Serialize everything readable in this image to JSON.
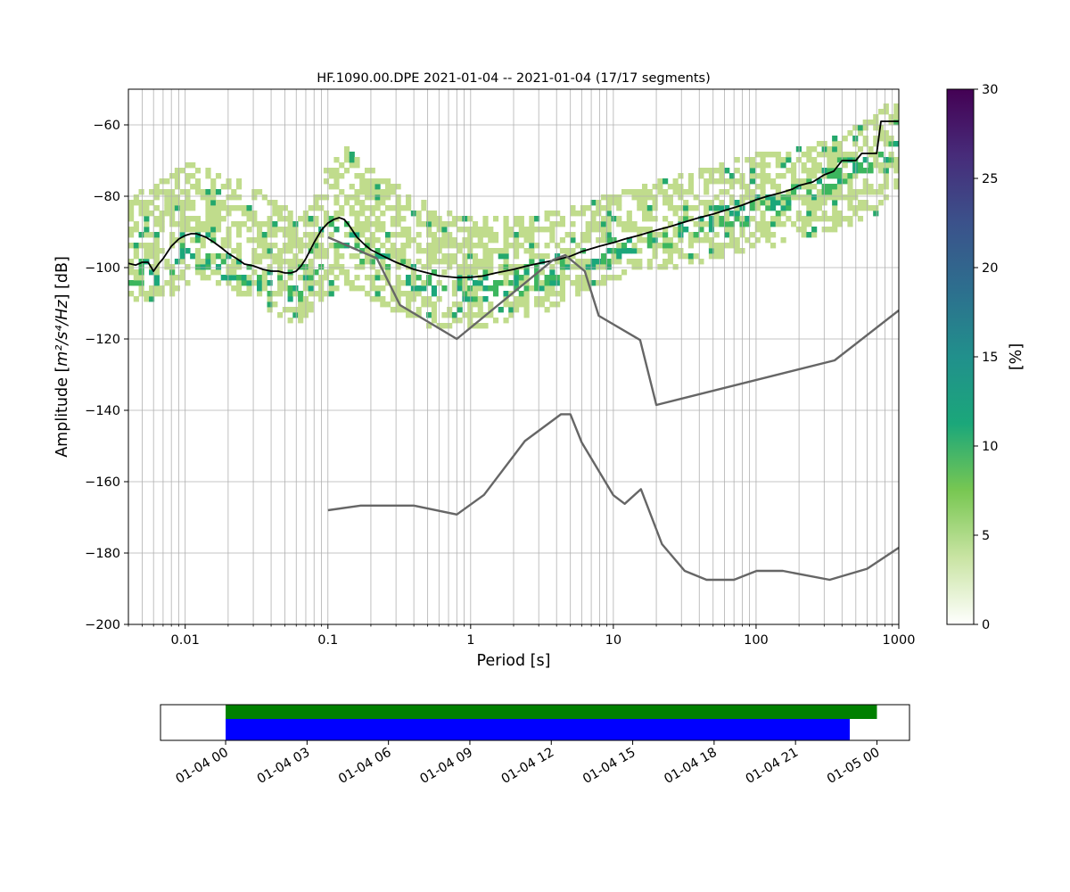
{
  "chart_data": [
    {
      "type": "heatmap",
      "title": "HF.1090.00.DPE   2021-01-04 -- 2021-01-04  (17/17 segments)",
      "xlabel": "Period [s]",
      "ylabel_main": "Amplitude [",
      "ylabel_math": "m²/s⁴/Hz",
      "ylabel_tail": "] [dB]",
      "x_scale": "log",
      "xlim": [
        0.004,
        1000
      ],
      "ylim": [
        -200,
        -50
      ],
      "grid": true,
      "x_ticks": [
        {
          "value": 0.01,
          "label": "0.01"
        },
        {
          "value": 0.1,
          "label": "0.1"
        },
        {
          "value": 1,
          "label": "1"
        },
        {
          "value": 10,
          "label": "10"
        },
        {
          "value": 100,
          "label": "100"
        },
        {
          "value": 1000,
          "label": "1000"
        }
      ],
      "y_ticks": [
        {
          "value": -200,
          "label": "−200"
        },
        {
          "value": -180,
          "label": "−180"
        },
        {
          "value": -160,
          "label": "−160"
        },
        {
          "value": -140,
          "label": "−140"
        },
        {
          "value": -120,
          "label": "−120"
        },
        {
          "value": -100,
          "label": "−100"
        },
        {
          "value": -80,
          "label": "−80"
        },
        {
          "value": -60,
          "label": "−60"
        }
      ],
      "series": [
        {
          "role": "mean",
          "color": "#000000",
          "points": [
            [
              0.004,
              -98.8
            ],
            [
              0.0045,
              -99.3
            ],
            [
              0.005,
              -98.5
            ],
            [
              0.0055,
              -98.5
            ],
            [
              0.006,
              -101
            ],
            [
              0.0065,
              -99
            ],
            [
              0.007,
              -97.5
            ],
            [
              0.008,
              -94
            ],
            [
              0.009,
              -92
            ],
            [
              0.01,
              -91
            ],
            [
              0.011,
              -90.5
            ],
            [
              0.012,
              -90.5
            ],
            [
              0.014,
              -91.5
            ],
            [
              0.016,
              -93
            ],
            [
              0.018,
              -94.5
            ],
            [
              0.02,
              -96
            ],
            [
              0.023,
              -97.5
            ],
            [
              0.026,
              -99
            ],
            [
              0.03,
              -99.5
            ],
            [
              0.035,
              -100.5
            ],
            [
              0.04,
              -101
            ],
            [
              0.045,
              -101
            ],
            [
              0.05,
              -101.5
            ],
            [
              0.055,
              -101.5
            ],
            [
              0.06,
              -101
            ],
            [
              0.065,
              -99.5
            ],
            [
              0.07,
              -97.5
            ],
            [
              0.08,
              -93
            ],
            [
              0.09,
              -89.5
            ],
            [
              0.1,
              -87.5
            ],
            [
              0.11,
              -86.5
            ],
            [
              0.12,
              -86
            ],
            [
              0.13,
              -86.5
            ],
            [
              0.14,
              -88
            ],
            [
              0.16,
              -91.5
            ],
            [
              0.18,
              -93.5
            ],
            [
              0.2,
              -95
            ],
            [
              0.25,
              -97
            ],
            [
              0.3,
              -98.5
            ],
            [
              0.4,
              -100.5
            ],
            [
              0.5,
              -101.5
            ],
            [
              0.6,
              -102.3
            ],
            [
              0.8,
              -102.8
            ],
            [
              1,
              -102.7
            ],
            [
              1.2,
              -102.4
            ],
            [
              1.5,
              -101.5
            ],
            [
              2,
              -100.5
            ],
            [
              2.5,
              -99.5
            ],
            [
              3,
              -98.8
            ],
            [
              4,
              -97.8
            ],
            [
              5,
              -96.8
            ],
            [
              6,
              -95.5
            ],
            [
              8,
              -94
            ],
            [
              10,
              -93
            ],
            [
              12,
              -92
            ],
            [
              15,
              -91
            ],
            [
              20,
              -89.5
            ],
            [
              25,
              -88.5
            ],
            [
              30,
              -87.5
            ],
            [
              40,
              -86
            ],
            [
              50,
              -85
            ],
            [
              60,
              -84
            ],
            [
              80,
              -82.5
            ],
            [
              100,
              -81
            ],
            [
              120,
              -80
            ],
            [
              150,
              -79
            ],
            [
              180,
              -78
            ],
            [
              200,
              -77
            ],
            [
              250,
              -76
            ],
            [
              300,
              -74
            ],
            [
              350,
              -73
            ],
            [
              400,
              -70
            ],
            [
              500,
              -70
            ],
            [
              550,
              -68
            ],
            [
              700,
              -68
            ],
            [
              750,
              -59
            ],
            [
              1000,
              -59
            ]
          ]
        },
        {
          "role": "high-noise-model",
          "color": "#666666",
          "points": [
            [
              0.1,
              -91.5
            ],
            [
              0.22,
              -97.4
            ],
            [
              0.32,
              -110.5
            ],
            [
              0.8,
              -120
            ],
            [
              3.8,
              -97.8
            ],
            [
              4.6,
              -96.5
            ],
            [
              6.3,
              -101
            ],
            [
              7.9,
              -113.5
            ],
            [
              15.4,
              -120.3
            ],
            [
              20,
              -138.5
            ],
            [
              354.8,
              -126
            ],
            [
              1000,
              -112
            ]
          ]
        },
        {
          "role": "low-noise-model",
          "color": "#666666",
          "points": [
            [
              0.1,
              -168
            ],
            [
              0.17,
              -166.7
            ],
            [
              0.4,
              -166.7
            ],
            [
              0.8,
              -169.2
            ],
            [
              1.24,
              -163.7
            ],
            [
              2.4,
              -148.6
            ],
            [
              4.3,
              -141.1
            ],
            [
              5,
              -141.1
            ],
            [
              6,
              -149
            ],
            [
              10,
              -163.8
            ],
            [
              12,
              -166.2
            ],
            [
              15.6,
              -162.1
            ],
            [
              21.9,
              -177.5
            ],
            [
              31.6,
              -185
            ],
            [
              45,
              -187.5
            ],
            [
              70,
              -187.5
            ],
            [
              101,
              -185
            ],
            [
              154,
              -185
            ],
            [
              328,
              -187.5
            ],
            [
              600,
              -184.4
            ],
            [
              1000,
              -178.5
            ]
          ]
        }
      ],
      "bands": [
        {
          "name": "upper",
          "points": [
            [
              0.004,
              -81
            ],
            [
              0.007,
              -76
            ],
            [
              0.01,
              -72
            ],
            [
              0.014,
              -72
            ],
            [
              0.03,
              -78
            ],
            [
              0.06,
              -86
            ],
            [
              0.08,
              -82
            ],
            [
              0.1,
              -72
            ],
            [
              0.13,
              -66
            ],
            [
              0.2,
              -73
            ],
            [
              0.5,
              -83
            ],
            [
              1,
              -87
            ],
            [
              3,
              -86
            ],
            [
              10,
              -80
            ],
            [
              100,
              -69
            ],
            [
              300,
              -65
            ],
            [
              700,
              -58
            ],
            [
              1000,
              -52
            ]
          ]
        },
        {
          "name": "core",
          "points": [
            [
              0.004,
              -104
            ],
            [
              0.007,
              -102
            ],
            [
              0.01,
              -98
            ],
            [
              0.014,
              -99
            ],
            [
              0.03,
              -104
            ],
            [
              0.06,
              -109
            ],
            [
              0.1,
              -97
            ],
            [
              0.13,
              -92
            ],
            [
              0.2,
              -98
            ],
            [
              0.5,
              -106
            ],
            [
              1,
              -108
            ],
            [
              3,
              -104
            ],
            [
              10,
              -96
            ],
            [
              100,
              -85
            ],
            [
              300,
              -78
            ],
            [
              700,
              -71
            ],
            [
              1000,
              -66
            ]
          ]
        },
        {
          "name": "lower",
          "points": [
            [
              0.004,
              -110
            ],
            [
              0.007,
              -110
            ],
            [
              0.01,
              -106
            ],
            [
              0.014,
              -104
            ],
            [
              0.03,
              -110
            ],
            [
              0.06,
              -117
            ],
            [
              0.1,
              -109
            ],
            [
              0.13,
              -106
            ],
            [
              0.2,
              -110
            ],
            [
              0.5,
              -117
            ],
            [
              1,
              -118
            ],
            [
              3,
              -114
            ],
            [
              10,
              -104
            ],
            [
              100,
              -96
            ],
            [
              300,
              -91
            ],
            [
              700,
              -86
            ],
            [
              1000,
              -78
            ]
          ]
        }
      ]
    },
    {
      "type": "colorbar",
      "label": "[%]",
      "range": [
        0,
        30
      ],
      "colormap": [
        "#fffffe",
        "#c9e4a3",
        "#78c752",
        "#1ba77a",
        "#21908c",
        "#2d6f8e",
        "#3b528b",
        "#472c7a",
        "#440154"
      ],
      "ticks": [
        {
          "value": 0,
          "label": "0"
        },
        {
          "value": 5,
          "label": "5"
        },
        {
          "value": 10,
          "label": "10"
        },
        {
          "value": 15,
          "label": "15"
        },
        {
          "value": 20,
          "label": "20"
        },
        {
          "value": 25,
          "label": "25"
        },
        {
          "value": 30,
          "label": "30"
        }
      ]
    },
    {
      "type": "bar",
      "orientation": "horizontal",
      "xlim": [
        "2021-01-03 21:36",
        "2021-01-05 01:12"
      ],
      "series": [
        {
          "color": "#008000",
          "start": "2021-01-04 00:00",
          "end": "2021-01-05 00:00"
        },
        {
          "color": "#0000ff",
          "start": "2021-01-04 00:00",
          "end": "2021-01-04 23:00"
        }
      ],
      "x_ticks": [
        {
          "value": "2021-01-04 00:00",
          "label": "01-04 00"
        },
        {
          "value": "2021-01-04 03:00",
          "label": "01-04 03"
        },
        {
          "value": "2021-01-04 06:00",
          "label": "01-04 06"
        },
        {
          "value": "2021-01-04 09:00",
          "label": "01-04 09"
        },
        {
          "value": "2021-01-04 12:00",
          "label": "01-04 12"
        },
        {
          "value": "2021-01-04 15:00",
          "label": "01-04 15"
        },
        {
          "value": "2021-01-04 18:00",
          "label": "01-04 18"
        },
        {
          "value": "2021-01-04 21:00",
          "label": "01-04 21"
        },
        {
          "value": "2021-01-05 00:00",
          "label": "01-05 00"
        }
      ]
    }
  ]
}
